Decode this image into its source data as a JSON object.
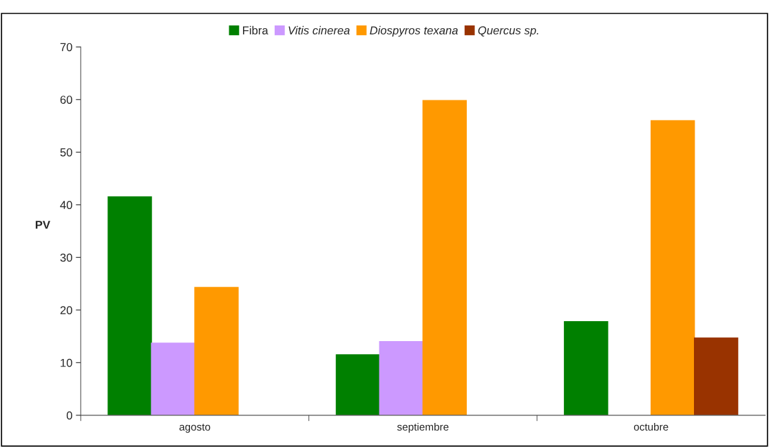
{
  "chart_data": {
    "type": "bar",
    "ylabel": "PV",
    "categories": [
      "agosto",
      "septiembre",
      "octubre"
    ],
    "series": [
      {
        "name": "Fibra",
        "color": "#008000",
        "values": [
          41.5,
          11.5,
          17.8
        ]
      },
      {
        "name": "Vitis cinerea",
        "color": "#cc99ff",
        "values": [
          13.7,
          14.0,
          null
        ]
      },
      {
        "name": "Diospyros texana",
        "color": "#ff9900",
        "values": [
          24.3,
          59.8,
          56.0
        ]
      },
      {
        "name": "Quercus sp.",
        "color": "#993300",
        "values": [
          null,
          null,
          14.7
        ]
      }
    ],
    "ylim": [
      0,
      70
    ],
    "yticks": [
      0,
      10,
      20,
      30,
      40,
      50,
      60,
      70
    ],
    "grid": false,
    "legend": "top"
  }
}
